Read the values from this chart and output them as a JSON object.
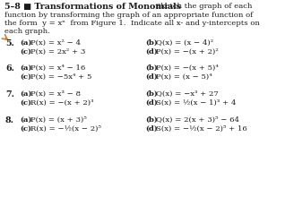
{
  "bg_color": "#ffffff",
  "text_color": "#1a1a1a",
  "title_bold": "5–8 ■ Transformations of Monomials",
  "title_normal": "  Sketch the graph of each",
  "intro_lines": [
    "function by transforming the graph of an appropriate function of",
    "the form  y = xⁿ  from Figure 1.  Indicate all x- and y-intercepts on",
    "each graph."
  ],
  "problems": [
    {
      "number": "5.",
      "left_a_label": "(a)",
      "left_a_text": "P(x) = x² − 4",
      "left_c_label": "(c)",
      "left_c_text": "P(x) = 2x² + 3",
      "right_b_label": "(b)",
      "right_b_text": "Q(x) = (x − 4)²",
      "right_d_label": "(d)",
      "right_d_text": "P(x) = −(x + 2)²"
    },
    {
      "number": "6.",
      "left_a_label": "(a)",
      "left_a_text": "P(x) = x⁴ − 16",
      "left_c_label": "(c)",
      "left_c_text": "P(x) = −5x⁴ + 5",
      "right_b_label": "(b)",
      "right_b_text": "P(x) = −(x + 5)⁴",
      "right_d_label": "(d)",
      "right_d_text": "P(x) = (x − 5)⁴"
    },
    {
      "number": "7.",
      "left_a_label": "(a)",
      "left_a_text": "P(x) = x³ − 8",
      "left_c_label": "(c)",
      "left_c_text": "R(x) = −(x + 2)³",
      "right_b_label": "(b)",
      "right_b_text": "Q(x) = −x³ + 27",
      "right_d_label": "(d)",
      "right_d_text": "S(x) = ½(x − 1)³ + 4"
    },
    {
      "number": "8.",
      "left_a_label": "(a)",
      "left_a_text": "P(x) = (x + 3)⁵",
      "left_c_label": "(c)",
      "left_c_text": "R(x) = −½(x − 2)⁵",
      "right_b_label": "(b)",
      "right_b_text": "Q(x) = 2(x + 3)⁵ − 64",
      "right_d_label": "(d)",
      "right_d_text": "S(x) = −½(x − 2)⁵ + 16"
    }
  ],
  "pencil_color": "#D4822A",
  "fs_title": 6.8,
  "fs_body": 6.1,
  "fs_math": 6.1
}
